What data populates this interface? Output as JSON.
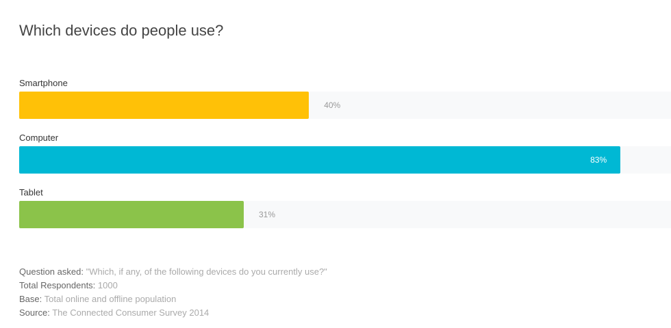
{
  "chart_data": {
    "type": "bar",
    "orientation": "horizontal",
    "title": "Which devices do people use?",
    "categories": [
      "Smartphone",
      "Computer",
      "Tablet"
    ],
    "series": [
      {
        "colors": [
          "#ffc107",
          "#00b8d4",
          "#8bc34a"
        ],
        "values": [
          40,
          83,
          31
        ],
        "value_labels": [
          "40%",
          "83%",
          "31%"
        ]
      }
    ]
  },
  "notes": [
    {
      "label": "Question asked:",
      "text": "\"Which, if any, of the following devices do you currently use?\""
    },
    {
      "label": "Total Respondents:",
      "text": "1000"
    },
    {
      "label": "Base:",
      "text": "Total online and offline population"
    },
    {
      "label": "Source:",
      "text": "The Connected Consumer Survey 2014"
    }
  ]
}
